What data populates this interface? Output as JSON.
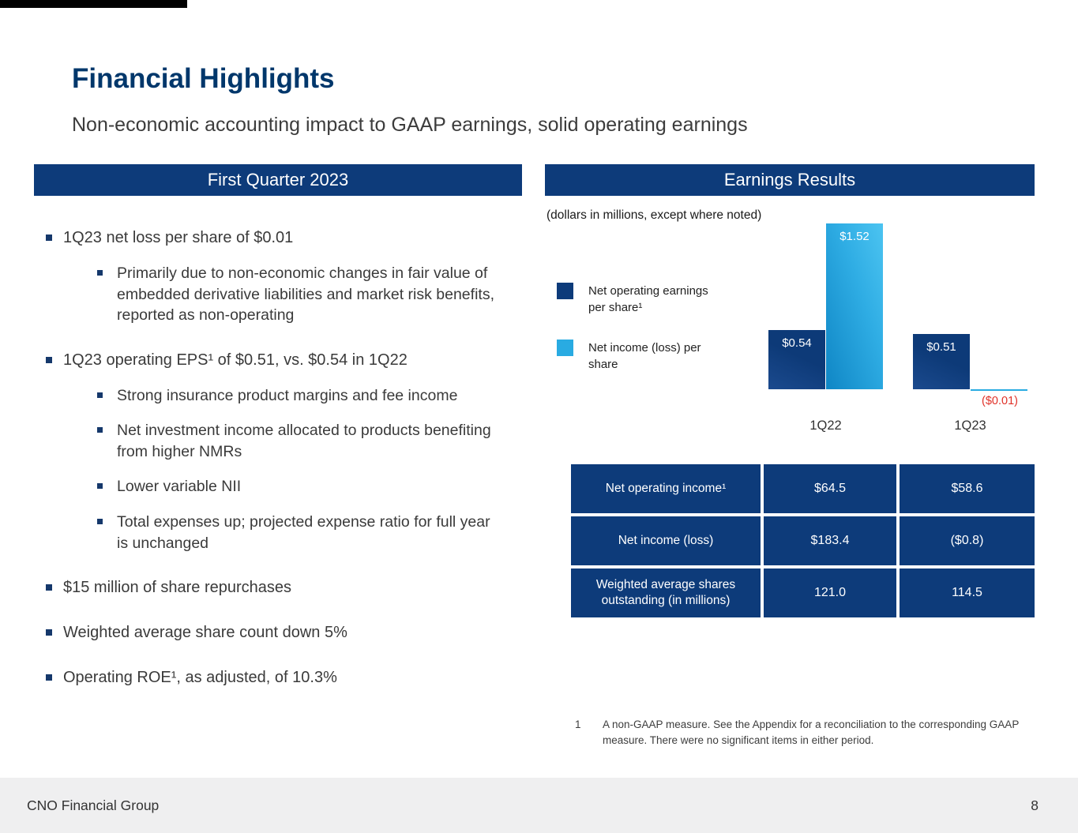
{
  "colors": {
    "navy": "#0d3b7a",
    "light_blue": "#29abe2",
    "title_navy": "#00376b",
    "negative_red": "#e03128",
    "accent_black": "#000000"
  },
  "slide": {
    "title": "Financial Highlights",
    "subtitle": "Non-economic accounting impact to GAAP earnings, solid operating earnings"
  },
  "left_panel": {
    "header": "First Quarter 2023",
    "bullets": [
      {
        "level": 1,
        "text": "1Q23 net loss per share of $0.01"
      },
      {
        "level": 2,
        "text": "Primarily due to non-economic changes in fair value of embedded derivative liabilities and market risk benefits, reported as non-operating"
      },
      {
        "level": 1,
        "text": "1Q23 operating EPS¹ of $0.51, vs. $0.54 in 1Q22"
      },
      {
        "level": 2,
        "text": "Strong insurance product margins and fee income"
      },
      {
        "level": 2,
        "text": "Net investment income allocated to products benefiting from higher NMRs"
      },
      {
        "level": 2,
        "text": "Lower variable NII"
      },
      {
        "level": 2,
        "text": "Total expenses up; projected expense ratio for full year is unchanged"
      },
      {
        "level": 1,
        "text": "$15 million of share repurchases"
      },
      {
        "level": 1,
        "text": "Weighted average share count down 5%"
      },
      {
        "level": 1,
        "text": "Operating ROE¹, as adjusted, of 10.3%"
      }
    ]
  },
  "right_panel": {
    "header": "Earnings Results",
    "note": "(dollars in millions, except where noted)",
    "footnote": {
      "number": "1",
      "text": "A non-GAAP measure. See the Appendix for a reconciliation to the corresponding GAAP measure. There were no significant items in either period."
    }
  },
  "chart_data": {
    "type": "bar",
    "title": "Earnings Results",
    "subtitle": "(dollars in millions, except where noted)",
    "categories": [
      "1Q22",
      "1Q23"
    ],
    "series": [
      {
        "name": "Net operating earnings per share¹",
        "color": "#0d3b7a",
        "values": [
          0.54,
          0.51
        ],
        "labels": [
          "$0.54",
          "$0.51"
        ]
      },
      {
        "name": "Net income (loss) per share",
        "color": "#29abe2",
        "values": [
          1.52,
          -0.01
        ],
        "labels": [
          "$1.52",
          "($0.01)"
        ]
      }
    ],
    "ylim": [
      -0.05,
      1.6
    ],
    "grid": false,
    "legend_position": "left"
  },
  "table": {
    "rows": [
      {
        "label": "Net operating income¹",
        "values": [
          "$64.5",
          "$58.6"
        ]
      },
      {
        "label": "Net income (loss)",
        "values": [
          "$183.4",
          "($0.8)"
        ]
      },
      {
        "label": "Weighted average shares outstanding (in millions)",
        "values": [
          "121.0",
          "114.5"
        ]
      }
    ]
  },
  "footer": {
    "company": "CNO Financial Group",
    "page": "8"
  }
}
